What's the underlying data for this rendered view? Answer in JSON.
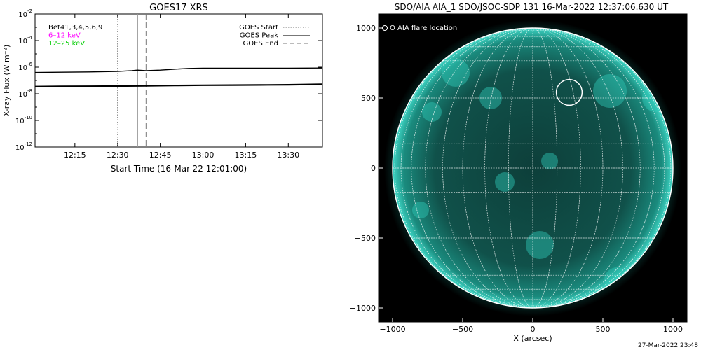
{
  "chart_data": [
    {
      "type": "line",
      "title": "GOES17 XRS",
      "xlabel": "Start Time (16-Mar-22 12:01:00)",
      "ylabel": "X-ray Flux (W m⁻²)",
      "y_scale": "log",
      "ylim": [
        1e-12,
        0.01
      ],
      "xlim": [
        "12:01",
        "13:42"
      ],
      "x_ticks": [
        "12:15",
        "12:30",
        "12:45",
        "13:00",
        "13:15",
        "13:30"
      ],
      "y_ticks": [
        {
          "base": "10",
          "exp": "-12"
        },
        {
          "base": "10",
          "exp": "-10"
        },
        {
          "base": "10",
          "exp": "-8"
        },
        {
          "base": "10",
          "exp": "-6"
        },
        {
          "base": "10",
          "exp": "-4"
        },
        {
          "base": "10",
          "exp": "-2"
        }
      ],
      "legend_left": [
        {
          "label": "Bet41,3,4,5,6,9",
          "color": "#000000"
        },
        {
          "label": "6–12 keV",
          "color": "#ff00ff"
        },
        {
          "label": "12–25 keV",
          "color": "#00cc00"
        }
      ],
      "legend_right": [
        {
          "label": "GOES Start",
          "style": "dotted"
        },
        {
          "label": "GOES Peak",
          "style": "solid"
        },
        {
          "label": "GOES End",
          "style": "dashed"
        }
      ],
      "markers": {
        "goes_start": "12:30",
        "goes_peak": "12:37",
        "goes_end": "12:40"
      },
      "series": [
        {
          "x": [
            "12:01",
            "12:10",
            "12:20",
            "12:30",
            "12:35",
            "12:37",
            "12:40",
            "12:45",
            "12:50",
            "12:55",
            "13:00",
            "13:10",
            "13:20",
            "13:30",
            "13:42"
          ],
          "values": [
            4e-07,
            4.2e-07,
            4.4e-07,
            4.8e-07,
            5.5e-07,
            6e-07,
            5.5e-07,
            6e-07,
            7e-07,
            8e-07,
            8.3e-07,
            8.3e-07,
            8.3e-07,
            8.4e-07,
            8.6e-07
          ]
        },
        {
          "x": [
            "12:01",
            "12:10",
            "12:20",
            "12:30",
            "12:40",
            "12:50",
            "13:00",
            "13:10",
            "13:20",
            "13:30",
            "13:42"
          ],
          "values": [
            3.5e-08,
            3.6e-08,
            3.7e-08,
            3.8e-08,
            4e-08,
            4.2e-08,
            4.4e-08,
            4.5e-08,
            4.6e-08,
            4.8e-08,
            5.2e-08
          ]
        }
      ]
    },
    {
      "type": "scatter",
      "title": "SDO/AIA AIA_1 SDO/JSOC-SDP 131 16-Mar-2022 12:37:06.630 UT",
      "xlabel": "X (arcsec)",
      "ylabel": "",
      "xlim": [
        -1100,
        1100
      ],
      "ylim": [
        -1100,
        1100
      ],
      "x_ticks": [
        "−1000",
        "−500",
        "0",
        "500",
        "1000"
      ],
      "y_ticks": [
        "−1000",
        "−500",
        "0",
        "500",
        "1000"
      ],
      "legend": "O AIA flare location",
      "disk_radius_arcsec": 1000,
      "flare_location": {
        "x": 260,
        "y": 540
      },
      "grid_line_spacing_deg": 10
    }
  ],
  "footer_timestamp": "27-Mar-2022 23:48",
  "colors": {
    "sun_teal": "#19b5a5",
    "background_white": "#ffffff",
    "image_black": "#000000"
  }
}
